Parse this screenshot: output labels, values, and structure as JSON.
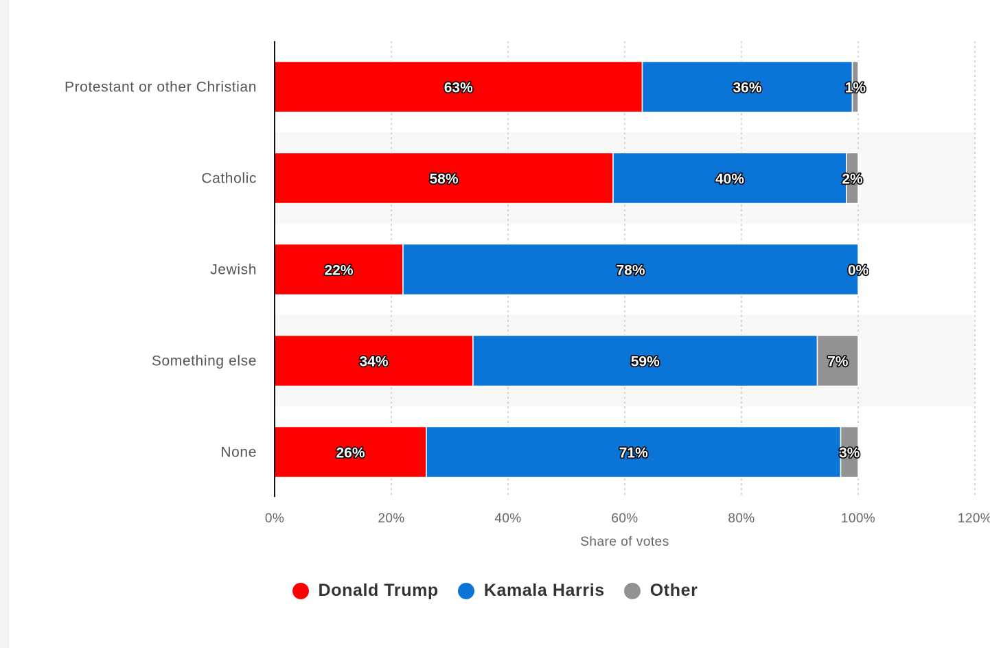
{
  "chart_data": {
    "type": "bar",
    "orientation": "horizontal",
    "stacked": true,
    "categories": [
      "Protestant or other Christian",
      "Catholic",
      "Jewish",
      "Something else",
      "None"
    ],
    "series": [
      {
        "name": "Donald Trump",
        "color": "#ff0000",
        "values": [
          63,
          58,
          22,
          34,
          26
        ]
      },
      {
        "name": "Kamala Harris",
        "color": "#0a75d6",
        "values": [
          36,
          40,
          78,
          59,
          71
        ]
      },
      {
        "name": "Other",
        "color": "#929292",
        "values": [
          1,
          2,
          0,
          7,
          3
        ]
      }
    ],
    "xlabel": "Share of votes",
    "xlim": [
      0,
      120
    ],
    "xticks": [
      0,
      20,
      40,
      60,
      80,
      100,
      120
    ],
    "tick_format": "{v}%",
    "data_label_format": "{v}%",
    "legend_position": "bottom-center",
    "grid": true
  }
}
